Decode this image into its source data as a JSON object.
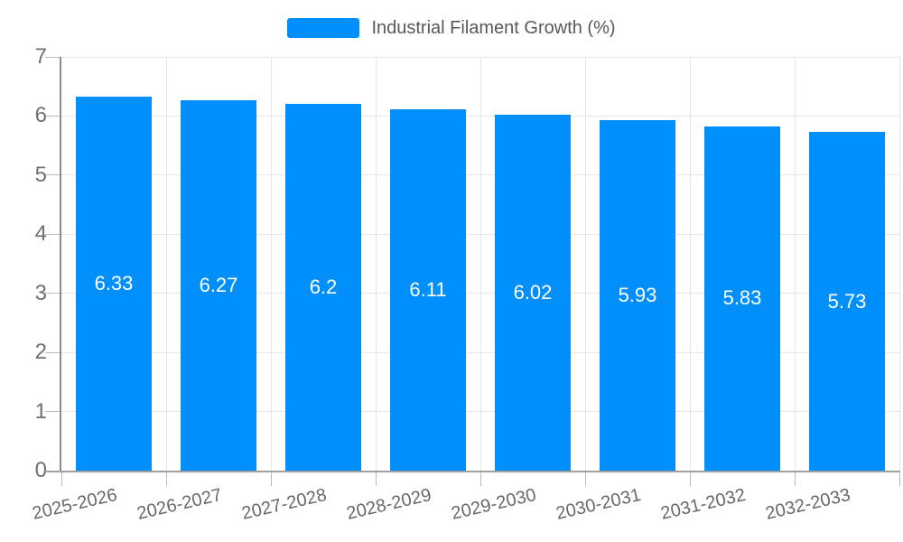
{
  "chart_data": {
    "type": "bar",
    "title": "Industrial Filament Growth (%)",
    "categories": [
      "2025-2026",
      "2026-2027",
      "2027-2028",
      "2028-2029",
      "2029-2030",
      "2030-2031",
      "2031-2032",
      "2032-2033"
    ],
    "values": [
      6.33,
      6.27,
      6.2,
      6.11,
      6.02,
      5.93,
      5.83,
      5.73
    ],
    "xlabel": "",
    "ylabel": "",
    "ylim": [
      0,
      7
    ],
    "y_ticks": [
      0,
      1,
      2,
      3,
      4,
      5,
      6,
      7
    ],
    "grid": "both",
    "legend_position": "top",
    "bar_color": "#008FFB",
    "value_label_color": "#ffffff"
  },
  "legend": {
    "label": "Industrial Filament Growth (%)",
    "swatch_color": "#008FFB"
  },
  "colors": {
    "gridline": "#e5e5e5",
    "y_axis_line": "#8a8a8a",
    "x_axis_line": "#a0a0a0",
    "tick": "#b9b9b9",
    "y_label_text": "#6f6f6f",
    "x_label_text": "#65686c",
    "legend_text": "#54595e",
    "background": "#ffffff"
  }
}
